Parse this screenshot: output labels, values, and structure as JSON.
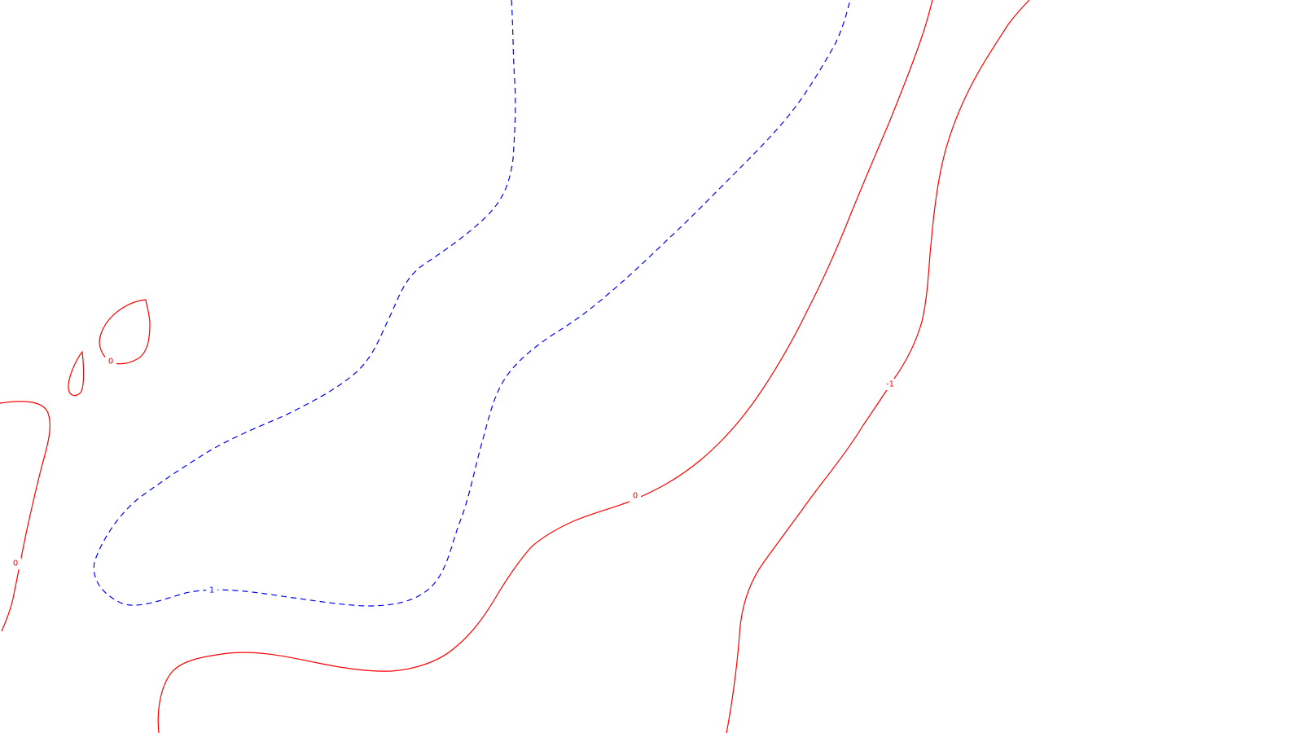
{
  "map": {
    "background_color": "#ffffff",
    "contours": [
      {
        "id": "red-left-edge",
        "level": "0",
        "style": "solid",
        "color": "#ff0000"
      },
      {
        "id": "red-small-drop",
        "level": "0",
        "style": "solid",
        "color": "#ff0000"
      },
      {
        "id": "red-teardrop",
        "level": "0",
        "style": "solid",
        "color": "#ff0000"
      },
      {
        "id": "blue-dashed",
        "level": "1",
        "style": "dashed",
        "color": "#0000ff"
      },
      {
        "id": "red-zero-main",
        "level": "0",
        "style": "solid",
        "color": "#ff0000"
      },
      {
        "id": "red-minus-one",
        "level": "-1",
        "style": "solid",
        "color": "#ff0000"
      }
    ],
    "labels": {
      "left_zero": "0",
      "teardrop_zero": "0",
      "blue_one": "1",
      "main_zero": "0",
      "minus_one": "-1"
    }
  }
}
